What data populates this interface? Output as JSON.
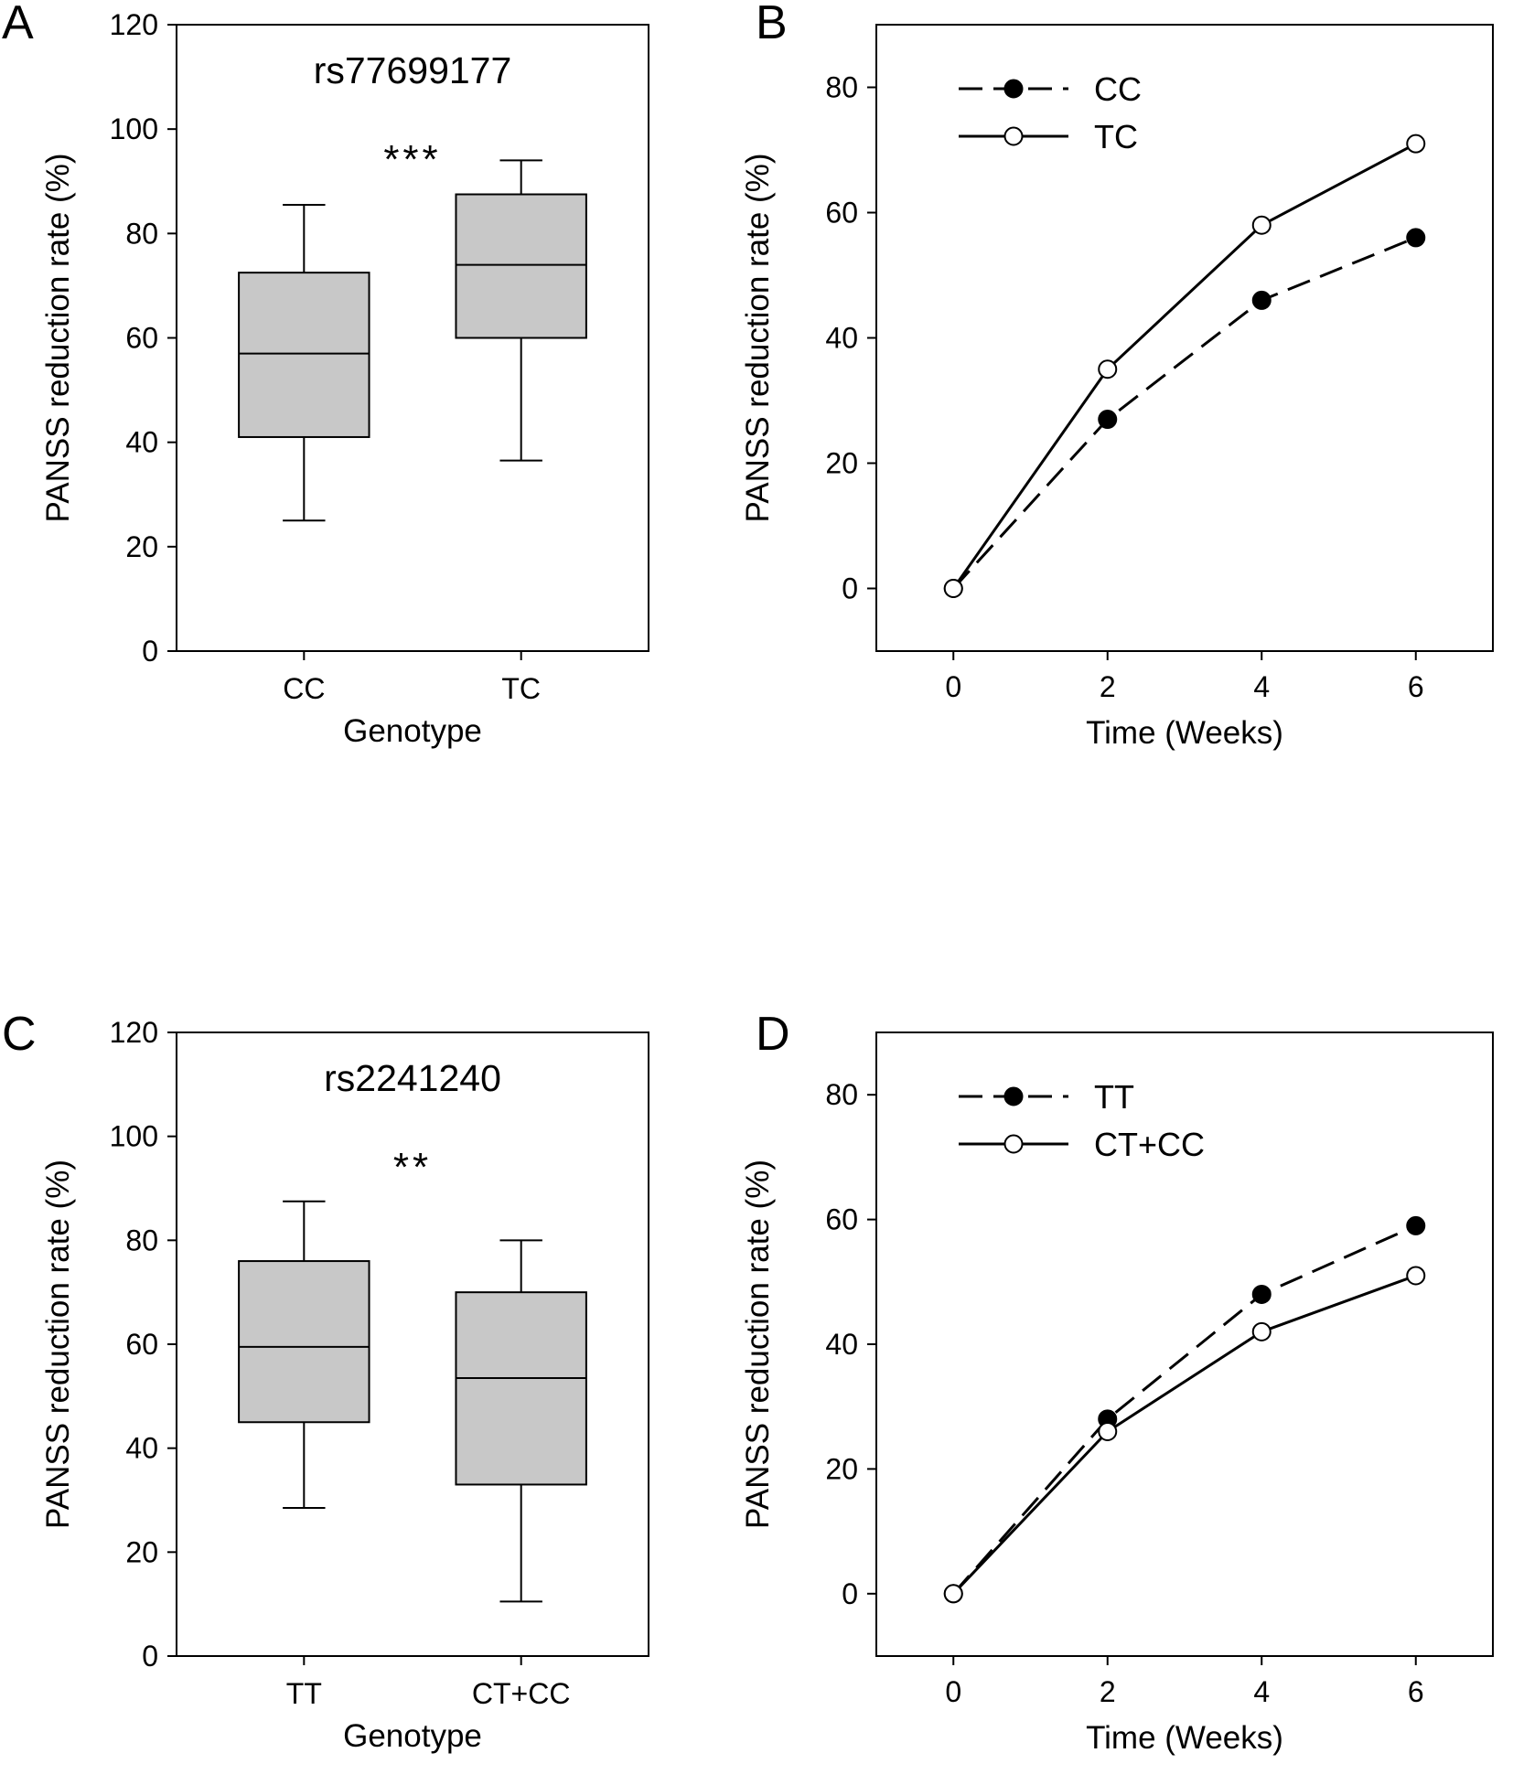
{
  "chart_data": [
    {
      "type": "box",
      "panel": "A",
      "title": "rs77699177",
      "significance": "***",
      "xlabel": "Genotype",
      "ylabel": "PANSS reduction rate (%)",
      "ylim": [
        0,
        120
      ],
      "yticks": [
        0,
        20,
        40,
        60,
        80,
        100,
        120
      ],
      "categories": [
        "CC",
        "TC"
      ],
      "boxes": [
        {
          "min": 25,
          "q1": 41,
          "median": 57,
          "q3": 72.5,
          "max": 85.5
        },
        {
          "min": 36.5,
          "q1": 60,
          "median": 74,
          "q3": 87.5,
          "max": 94
        }
      ]
    },
    {
      "type": "line",
      "panel": "B",
      "xlabel": "Time (Weeks)",
      "ylabel": "PANSS reduction rate (%)",
      "xlim": [
        -1,
        7
      ],
      "ylim": [
        -10,
        90
      ],
      "xticks": [
        0,
        2,
        4,
        6
      ],
      "yticks": [
        0,
        20,
        40,
        60,
        80
      ],
      "x": [
        0,
        2,
        4,
        6
      ],
      "series": [
        {
          "name": "CC",
          "values": [
            0,
            27,
            46,
            56
          ],
          "marker": "filled",
          "dash": true
        },
        {
          "name": "TC",
          "values": [
            0,
            35,
            58,
            71
          ],
          "marker": "open",
          "dash": false
        }
      ]
    },
    {
      "type": "box",
      "panel": "C",
      "title": "rs2241240",
      "significance": "**",
      "xlabel": "Genotype",
      "ylabel": "PANSS reduction rate (%)",
      "ylim": [
        0,
        120
      ],
      "yticks": [
        0,
        20,
        40,
        60,
        80,
        100,
        120
      ],
      "categories": [
        "TT",
        "CT+CC"
      ],
      "boxes": [
        {
          "min": 28.5,
          "q1": 45,
          "median": 59.5,
          "q3": 76,
          "max": 87.5
        },
        {
          "min": 10.5,
          "q1": 33,
          "median": 53.5,
          "q3": 70,
          "max": 80
        }
      ]
    },
    {
      "type": "line",
      "panel": "D",
      "xlabel": "Time (Weeks)",
      "ylabel": "PANSS reduction rate (%)",
      "xlim": [
        -1,
        7
      ],
      "ylim": [
        -10,
        90
      ],
      "xticks": [
        0,
        2,
        4,
        6
      ],
      "yticks": [
        0,
        20,
        40,
        60,
        80
      ],
      "x": [
        0,
        2,
        4,
        6
      ],
      "series": [
        {
          "name": "TT",
          "values": [
            0,
            28,
            48,
            59
          ],
          "marker": "filled",
          "dash": true
        },
        {
          "name": "CT+CC",
          "values": [
            0,
            26,
            42,
            51
          ],
          "marker": "open",
          "dash": false
        }
      ]
    }
  ]
}
